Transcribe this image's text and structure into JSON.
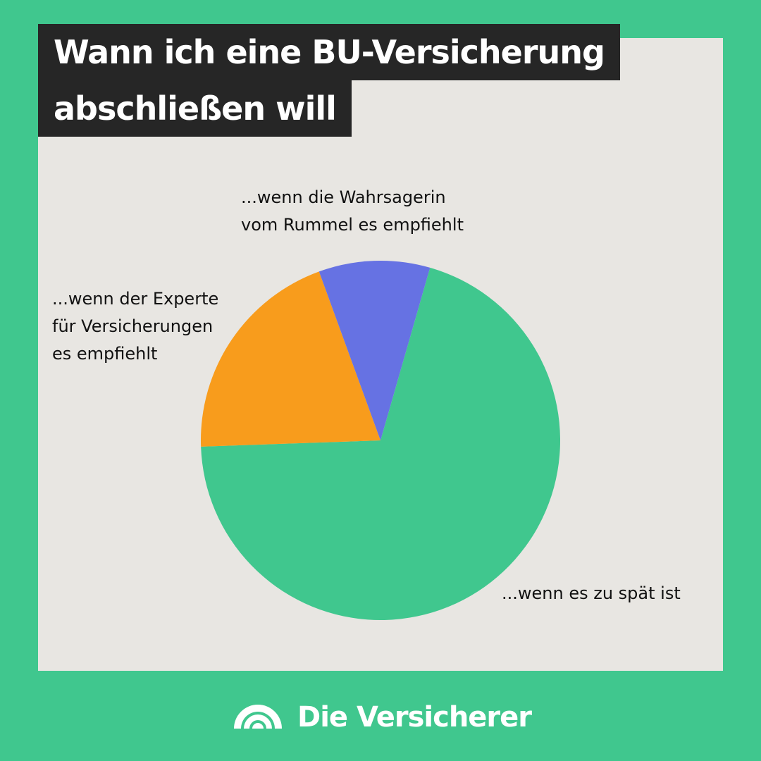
{
  "title": {
    "line1": "Wann ich eine BU-Versicherung",
    "line2": "abschließen will"
  },
  "colors": {
    "background": "#40C78E",
    "panel": "#E8E6E2",
    "title_bg": "#262626"
  },
  "chart_data": {
    "type": "pie",
    "slices": [
      {
        "label": "...wenn es zu spät ist",
        "lines": [
          "...wenn es zu spät ist"
        ],
        "value": 70,
        "color": "#40C78E"
      },
      {
        "label": "...wenn der Experte für Versicherungen es empfiehlt",
        "lines": [
          "...wenn der Experte",
          "für Versicherungen",
          "es empfiehlt"
        ],
        "value": 20,
        "color": "#F89C1C"
      },
      {
        "label": "...wenn die Wahrsagerin vom Rummel es empfiehlt",
        "lines": [
          "...wenn die Wahrsagerin",
          "vom Rummel es empfiehlt"
        ],
        "value": 10,
        "color": "#6672E3"
      }
    ],
    "legend": "none"
  },
  "brand": {
    "name": "Die Versicherer",
    "logo_icon": "rainbow-arcs-icon"
  }
}
